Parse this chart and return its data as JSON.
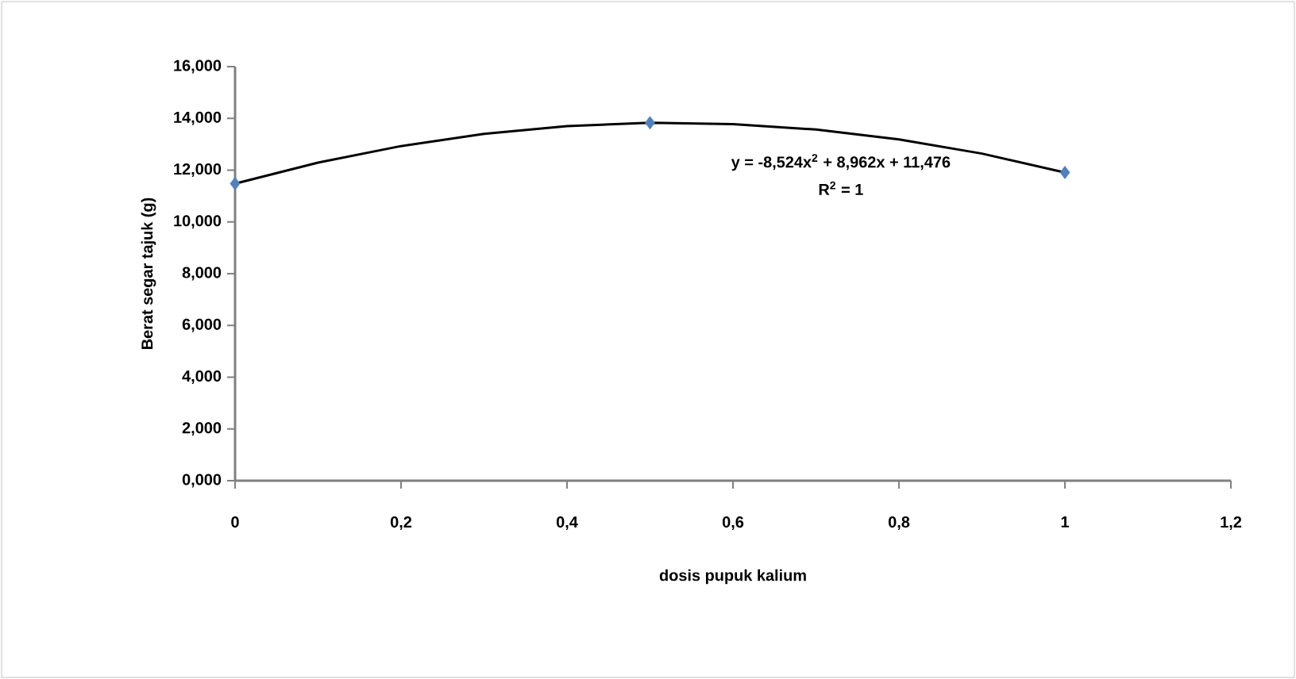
{
  "chart_data": {
    "type": "scatter",
    "xlabel": "dosis pupuk kalium",
    "ylabel": "Berat segar tajuk (g)",
    "annotations": [
      "y = -8,524x$^{2}$ + 8,962x + 11,476",
      "R$^{2}$ = 1"
    ],
    "series": [
      {
        "color": "#4f81bd",
        "marker": "diamond",
        "x": [
          0,
          0.5,
          1
        ],
        "values": [
          11.48,
          13.83,
          11.91
        ]
      },
      {
        "type": "line",
        "color": "#000000",
        "marker": "none",
        "line_style": "solid",
        "x": [
          0,
          0.1,
          0.2,
          0.3,
          0.4,
          0.5,
          0.6,
          0.7,
          0.8,
          0.9,
          1
        ],
        "values": [
          11.48,
          12.29,
          12.93,
          13.4,
          13.7,
          13.83,
          13.78,
          13.57,
          13.19,
          12.64,
          11.91
        ]
      }
    ],
    "xlim": [
      0,
      1.2
    ],
    "ylim": [
      0,
      16
    ],
    "xticks": [
      0,
      {
        "value": 0.2,
        "label": "0,2"
      },
      {
        "value": 0.4,
        "label": "0,4"
      },
      {
        "value": 0.6,
        "label": "0,6"
      },
      {
        "value": 0.8,
        "label": "0,8"
      },
      1,
      {
        "value": 1.2,
        "label": "1,2"
      }
    ],
    "yticks": [
      {
        "value": 0,
        "label": "0,000"
      },
      {
        "value": 2,
        "label": "2,000"
      },
      {
        "value": 4,
        "label": "4,000"
      },
      {
        "value": 6,
        "label": "6,000"
      },
      {
        "value": 8,
        "label": "8,000"
      },
      {
        "value": 10,
        "label": "10,000"
      },
      {
        "value": 12,
        "label": "12,000"
      },
      {
        "value": 14,
        "label": "14,000"
      },
      {
        "value": 16,
        "label": "16,000"
      }
    ],
    "grid": false
  }
}
